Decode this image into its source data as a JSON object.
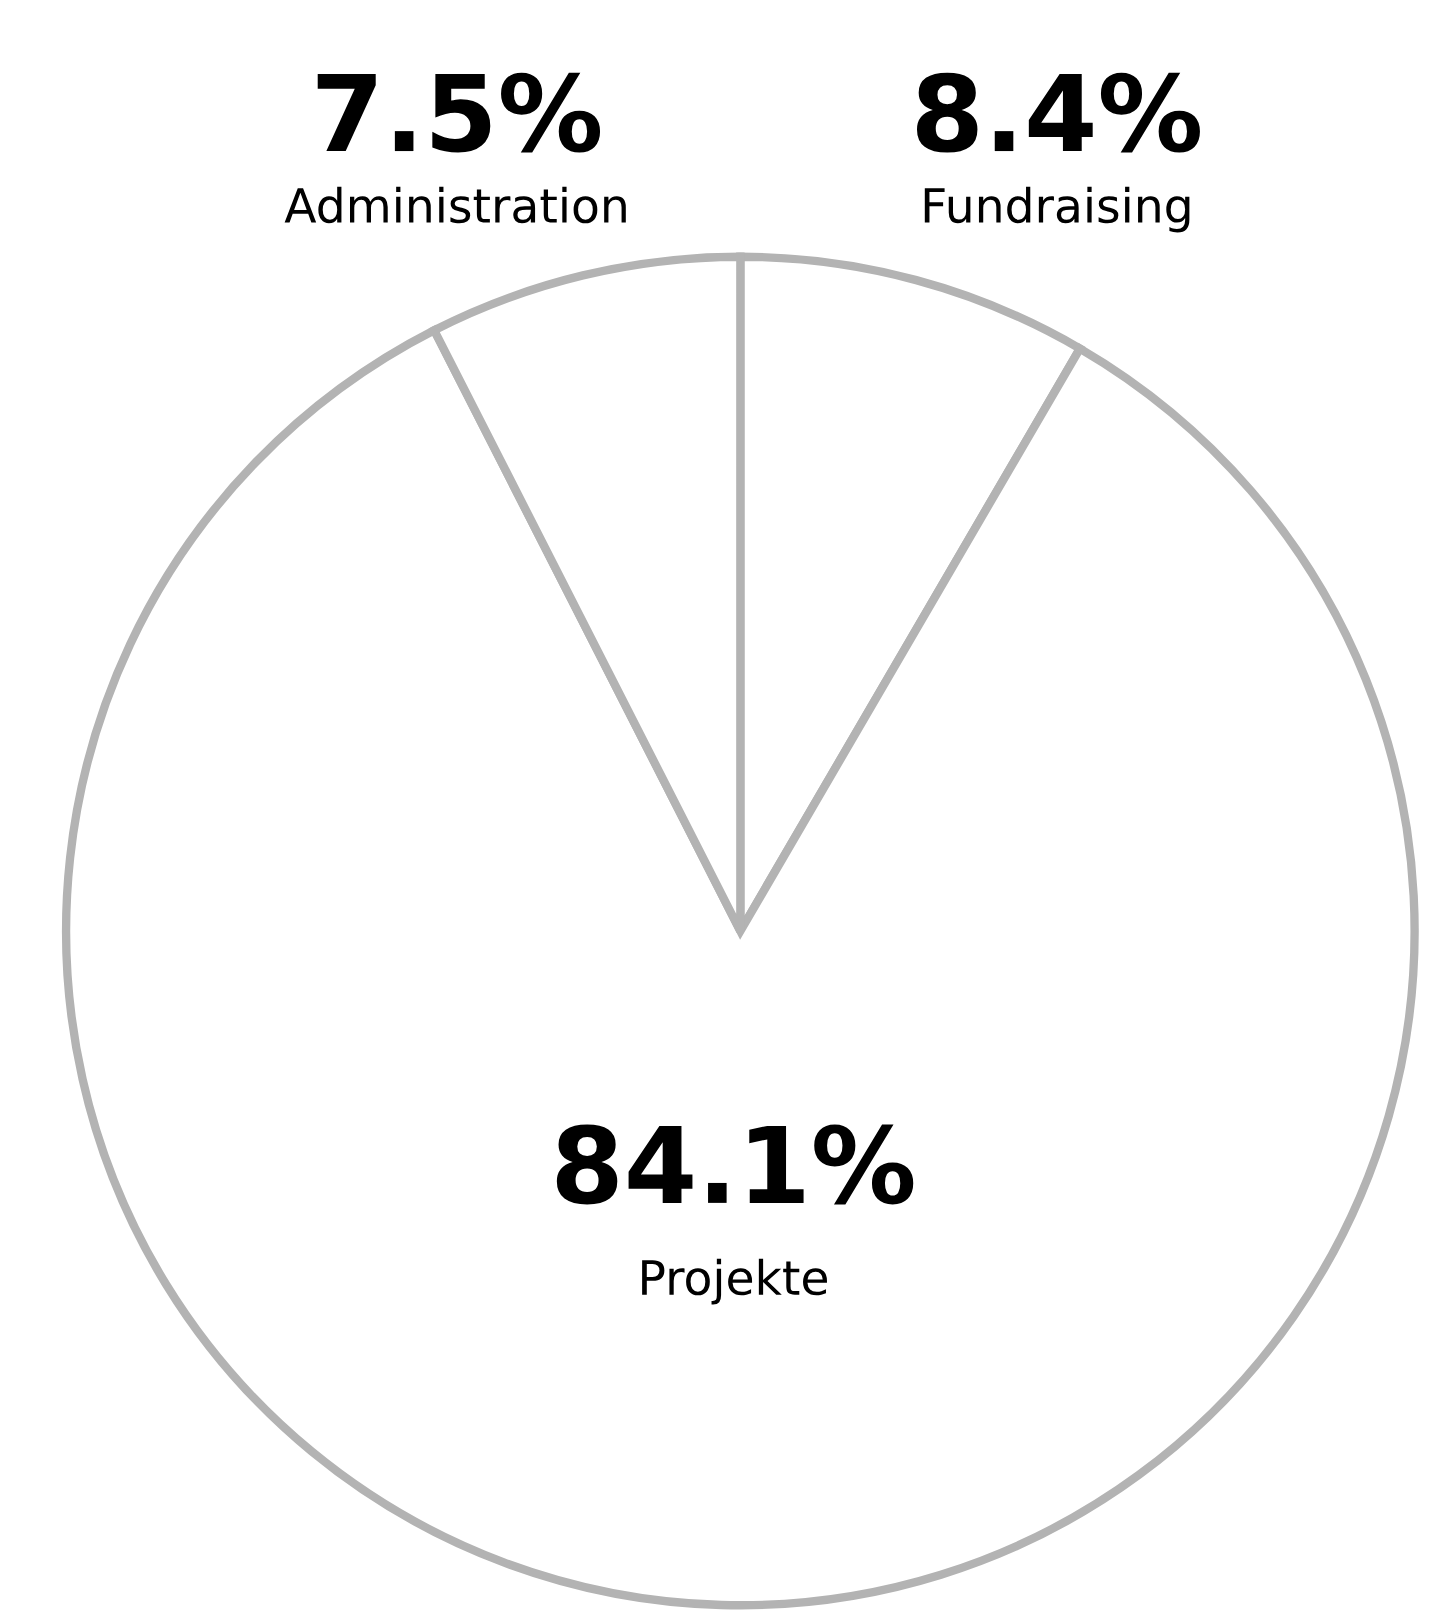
{
  "chart_data": {
    "type": "pie",
    "categories": [
      "Fundraising",
      "Projekte",
      "Administration"
    ],
    "values": [
      8.4,
      84.1,
      7.5
    ],
    "value_labels": [
      "8.4%",
      "84.1%",
      "7.5%"
    ],
    "colors": [
      "#ffffff",
      "#ffffff",
      "#ffffff"
    ]
  }
}
